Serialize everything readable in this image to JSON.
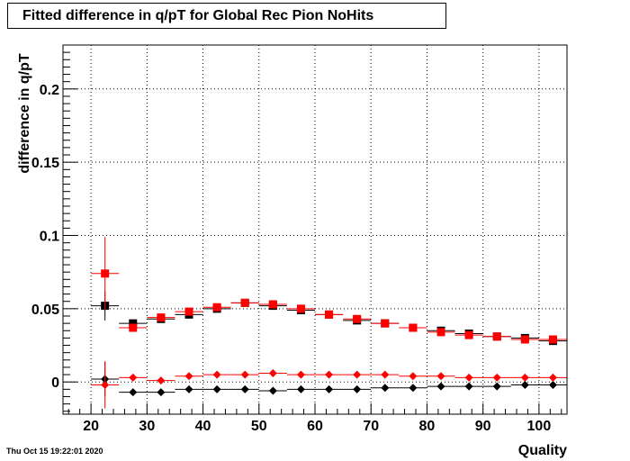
{
  "chart_data": {
    "type": "scatter",
    "title": "Fitted difference in q/pT for Global Rec Pion NoHits",
    "xlabel": "Quality",
    "ylabel": "difference in q/pT",
    "xlim": [
      15,
      105
    ],
    "ylim": [
      -0.022,
      0.23
    ],
    "xticks": [
      20,
      30,
      40,
      50,
      60,
      70,
      80,
      90,
      100
    ],
    "yticks": [
      0,
      0.05,
      0.1,
      0.15,
      0.2
    ],
    "ytick_labels": [
      "0",
      "0.05",
      "0.1",
      "0.15",
      "0.2"
    ],
    "grid": true,
    "series": [
      {
        "marker": "square",
        "color": "#000000",
        "x": [
          22.5,
          27.5,
          32.5,
          37.5,
          42.5,
          47.5,
          52.5,
          57.5,
          62.5,
          67.5,
          72.5,
          77.5,
          82.5,
          87.5,
          92.5,
          97.5,
          102.5
        ],
        "y": [
          0.052,
          0.04,
          0.043,
          0.046,
          0.05,
          0.054,
          0.052,
          0.049,
          0.046,
          0.042,
          0.04,
          0.037,
          0.035,
          0.033,
          0.031,
          0.03,
          0.028
        ],
        "yerr": [
          0.01,
          0.002,
          0.001,
          0.001,
          0.001,
          0.001,
          0.001,
          0.001,
          0.001,
          0.001,
          0.001,
          0.001,
          0.001,
          0.001,
          0.001,
          0.001,
          0.001
        ]
      },
      {
        "marker": "square",
        "color": "#ff0000",
        "x": [
          22.5,
          27.5,
          32.5,
          37.5,
          42.5,
          47.5,
          52.5,
          57.5,
          62.5,
          67.5,
          72.5,
          77.5,
          82.5,
          87.5,
          92.5,
          97.5,
          102.5
        ],
        "y": [
          0.074,
          0.037,
          0.044,
          0.048,
          0.051,
          0.054,
          0.053,
          0.05,
          0.046,
          0.043,
          0.04,
          0.037,
          0.034,
          0.032,
          0.031,
          0.029,
          0.029
        ],
        "yerr": [
          0.025,
          0.002,
          0.001,
          0.001,
          0.001,
          0.001,
          0.001,
          0.001,
          0.001,
          0.001,
          0.001,
          0.001,
          0.001,
          0.001,
          0.001,
          0.001,
          0.001
        ]
      },
      {
        "marker": "diamond",
        "color": "#000000",
        "x": [
          22.5,
          27.5,
          32.5,
          37.5,
          42.5,
          47.5,
          52.5,
          57.5,
          62.5,
          67.5,
          72.5,
          77.5,
          82.5,
          87.5,
          92.5,
          97.5,
          102.5
        ],
        "y": [
          0.002,
          -0.007,
          -0.007,
          -0.005,
          -0.005,
          -0.005,
          -0.006,
          -0.005,
          -0.005,
          -0.005,
          -0.004,
          -0.004,
          -0.003,
          -0.003,
          -0.003,
          -0.002,
          -0.002
        ],
        "yerr": [
          0.012,
          0.001,
          0.001,
          0.001,
          0.001,
          0.001,
          0.001,
          0.001,
          0.001,
          0.001,
          0.001,
          0.001,
          0.001,
          0.001,
          0.001,
          0.001,
          0.001
        ]
      },
      {
        "marker": "diamond",
        "color": "#ff0000",
        "x": [
          22.5,
          27.5,
          32.5,
          37.5,
          42.5,
          47.5,
          52.5,
          57.5,
          62.5,
          67.5,
          72.5,
          77.5,
          82.5,
          87.5,
          92.5,
          97.5,
          102.5
        ],
        "y": [
          -0.002,
          0.003,
          0.001,
          0.004,
          0.005,
          0.005,
          0.006,
          0.005,
          0.005,
          0.005,
          0.005,
          0.004,
          0.004,
          0.003,
          0.003,
          0.003,
          0.003
        ],
        "yerr": [
          0.016,
          0.001,
          0.001,
          0.001,
          0.001,
          0.001,
          0.001,
          0.001,
          0.001,
          0.001,
          0.001,
          0.001,
          0.001,
          0.001,
          0.001,
          0.001,
          0.001
        ]
      }
    ]
  },
  "footer": {
    "timestamp": "Thu Oct 15 19:22:01 2020"
  }
}
